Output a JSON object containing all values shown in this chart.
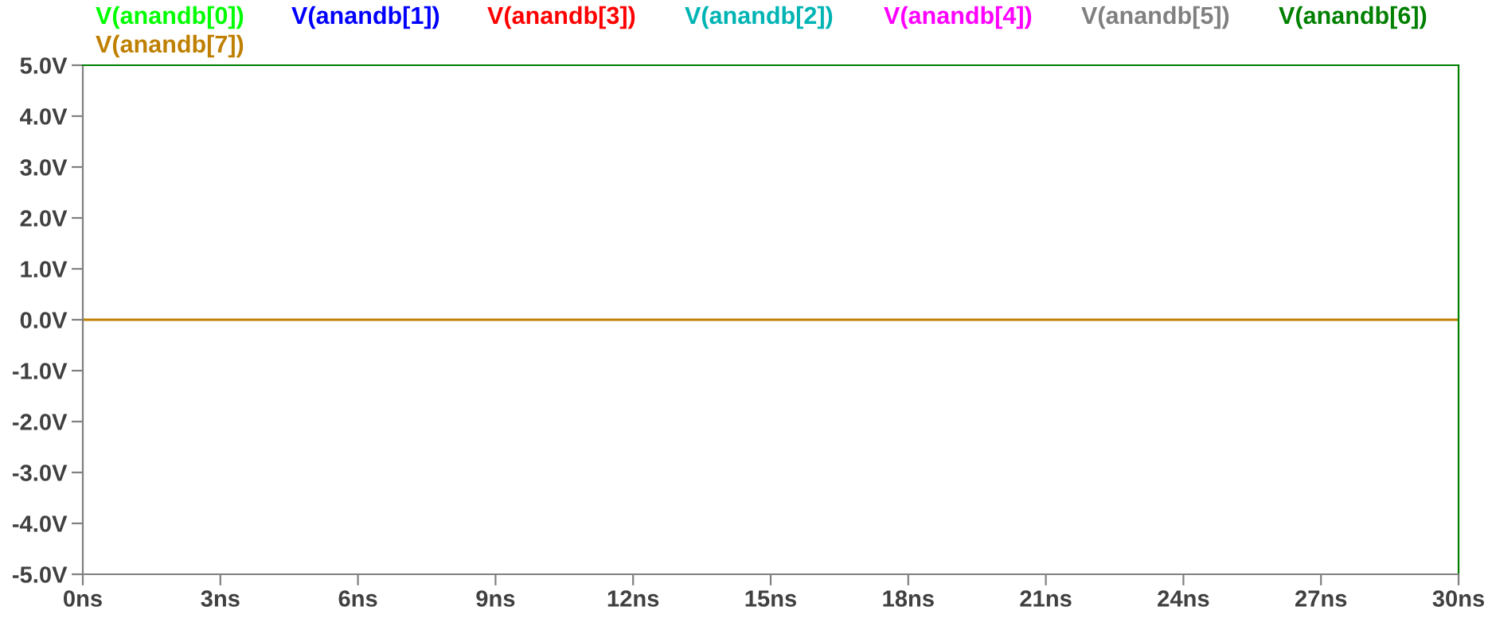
{
  "chart_data": {
    "type": "line",
    "legend": "top",
    "grid": false,
    "marker": "none",
    "line_style": "solid",
    "x": [
      0,
      30
    ],
    "series": [
      {
        "name": "V(anandb[0])",
        "color": "#00ff00",
        "values": [
          null,
          null
        ]
      },
      {
        "name": "V(anandb[1])",
        "color": "#0000ff",
        "values": [
          null,
          null
        ]
      },
      {
        "name": "V(anandb[3])",
        "color": "#ff0000",
        "values": [
          null,
          null
        ]
      },
      {
        "name": "V(anandb[2])",
        "color": "#00b4b4",
        "values": [
          null,
          null
        ]
      },
      {
        "name": "V(anandb[4])",
        "color": "#ff00ff",
        "values": [
          null,
          null
        ]
      },
      {
        "name": "V(anandb[5])",
        "color": "#808080",
        "values": [
          null,
          null
        ]
      },
      {
        "name": "V(anandb[6])",
        "color": "#008000",
        "values": [
          null,
          null
        ]
      },
      {
        "name": "V(anandb[7])",
        "color": "#bf8000",
        "values": [
          0,
          0
        ]
      }
    ],
    "xlim": [
      0,
      30
    ],
    "xticks": [
      {
        "value": 0,
        "label": "0ns"
      },
      {
        "value": 3,
        "label": "3ns"
      },
      {
        "value": 6,
        "label": "6ns"
      },
      {
        "value": 9,
        "label": "9ns"
      },
      {
        "value": 12,
        "label": "12ns"
      },
      {
        "value": 15,
        "label": "15ns"
      },
      {
        "value": 18,
        "label": "18ns"
      },
      {
        "value": 21,
        "label": "21ns"
      },
      {
        "value": 24,
        "label": "24ns"
      },
      {
        "value": 27,
        "label": "27ns"
      },
      {
        "value": 30,
        "label": "30ns"
      }
    ],
    "ylim": [
      -5,
      5
    ],
    "yticks": [
      {
        "value": -5,
        "label": "-5.0V"
      },
      {
        "value": -4,
        "label": "-4.0V"
      },
      {
        "value": -3,
        "label": "-3.0V"
      },
      {
        "value": -2,
        "label": "-2.0V"
      },
      {
        "value": -1,
        "label": "-1.0V"
      },
      {
        "value": 0,
        "label": "0.0V"
      },
      {
        "value": 1,
        "label": "1.0V"
      },
      {
        "value": 2,
        "label": "2.0V"
      },
      {
        "value": 3,
        "label": "3.0V"
      },
      {
        "value": 4,
        "label": "4.0V"
      },
      {
        "value": 5,
        "label": "5.0V"
      }
    ]
  }
}
